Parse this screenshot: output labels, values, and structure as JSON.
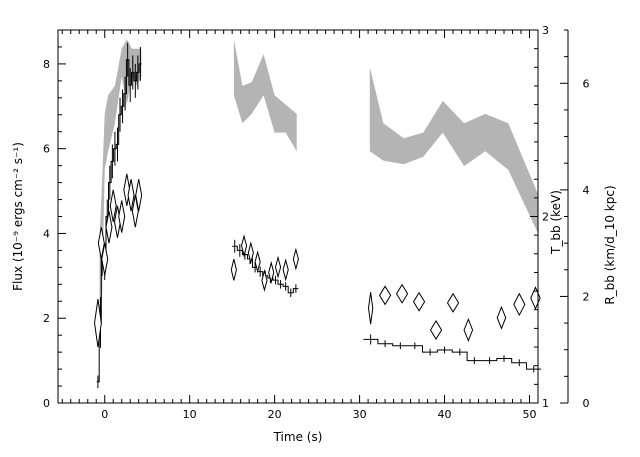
{
  "chart_data": {
    "type": "scatter",
    "xlabel": "Time (s)",
    "ylabel": "Flux (10⁻⁹ ergs cm⁻² s⁻¹)",
    "y2label_inner": "T_bb (keV)",
    "y3label_outer": "R_bb (km/d_10 kpc)",
    "xlim": [
      -5.5,
      51
    ],
    "ylim": [
      0,
      8.8
    ],
    "y2lim": [
      1,
      3
    ],
    "y3lim": [
      0,
      7
    ],
    "x_ticks": [
      0,
      10,
      20,
      30,
      40,
      50
    ],
    "y_ticks": [
      0,
      2,
      4,
      6,
      8
    ],
    "y2_ticks": [
      1,
      2,
      3
    ],
    "y3_ticks": [
      0,
      2,
      4,
      6
    ],
    "series": [
      {
        "role": "flux",
        "style": "crosses",
        "points": [
          {
            "x": -0.8,
            "y": 0.5,
            "ey": 0.15
          },
          {
            "x": -0.5,
            "y": 1.9,
            "ey": 0.6
          },
          {
            "x": -0.3,
            "y": 3.5,
            "ey": 0.5
          },
          {
            "x": 0.0,
            "y": 3.3,
            "ey": 0.4
          },
          {
            "x": 0.3,
            "y": 4.4,
            "ey": 0.4
          },
          {
            "x": 0.6,
            "y": 5.2,
            "ey": 0.4
          },
          {
            "x": 0.9,
            "y": 5.7,
            "ey": 0.4
          },
          {
            "x": 1.2,
            "y": 6.0,
            "ey": 0.4
          },
          {
            "x": 1.5,
            "y": 6.1,
            "ey": 0.4
          },
          {
            "x": 1.8,
            "y": 6.8,
            "ey": 0.4
          },
          {
            "x": 2.1,
            "y": 7.0,
            "ey": 0.4
          },
          {
            "x": 2.4,
            "y": 7.3,
            "ey": 0.4
          },
          {
            "x": 2.7,
            "y": 8.1,
            "ey": 0.4
          },
          {
            "x": 3.0,
            "y": 7.5,
            "ey": 0.4
          },
          {
            "x": 3.3,
            "y": 7.8,
            "ey": 0.4
          },
          {
            "x": 3.6,
            "y": 7.6,
            "ey": 0.4
          },
          {
            "x": 3.9,
            "y": 7.8,
            "ey": 0.4
          },
          {
            "x": 4.2,
            "y": 8.0,
            "ey": 0.4
          },
          {
            "x": 15.3,
            "y": 3.7,
            "ey": 0.15
          },
          {
            "x": 15.9,
            "y": 3.6,
            "ey": 0.15
          },
          {
            "x": 16.5,
            "y": 3.5,
            "ey": 0.12
          },
          {
            "x": 17.1,
            "y": 3.4,
            "ey": 0.12
          },
          {
            "x": 17.7,
            "y": 3.2,
            "ey": 0.12
          },
          {
            "x": 18.3,
            "y": 3.1,
            "ey": 0.12
          },
          {
            "x": 18.9,
            "y": 3.0,
            "ey": 0.12
          },
          {
            "x": 19.5,
            "y": 2.95,
            "ey": 0.12
          },
          {
            "x": 20.1,
            "y": 2.9,
            "ey": 0.1
          },
          {
            "x": 20.7,
            "y": 2.8,
            "ey": 0.1
          },
          {
            "x": 21.3,
            "y": 2.75,
            "ey": 0.1
          },
          {
            "x": 21.9,
            "y": 2.6,
            "ey": 0.1
          },
          {
            "x": 22.5,
            "y": 2.7,
            "ey": 0.1
          },
          {
            "x": 31.3,
            "y": 1.5,
            "ey": 0.12
          },
          {
            "x": 33.0,
            "y": 1.4,
            "ey": 0.08
          },
          {
            "x": 34.8,
            "y": 1.35,
            "ey": 0.08
          },
          {
            "x": 36.5,
            "y": 1.35,
            "ey": 0.08
          },
          {
            "x": 38.3,
            "y": 1.2,
            "ey": 0.08
          },
          {
            "x": 40.0,
            "y": 1.25,
            "ey": 0.08
          },
          {
            "x": 41.8,
            "y": 1.2,
            "ey": 0.08
          },
          {
            "x": 43.5,
            "y": 1.0,
            "ey": 0.08
          },
          {
            "x": 45.3,
            "y": 1.0,
            "ey": 0.08
          },
          {
            "x": 47.0,
            "y": 1.05,
            "ey": 0.08
          },
          {
            "x": 48.8,
            "y": 0.95,
            "ey": 0.08
          },
          {
            "x": 50.5,
            "y": 0.8,
            "ey": 0.08
          }
        ]
      },
      {
        "role": "T_bb",
        "style": "gray-band",
        "segments": [
          [
            {
              "x": -0.6,
              "lo": 1.4,
              "hi": 1.9
            },
            {
              "x": -0.3,
              "lo": 1.6,
              "hi": 2.2
            },
            {
              "x": 0.0,
              "lo": 2.25,
              "hi": 2.55
            },
            {
              "x": 0.4,
              "lo": 2.35,
              "hi": 2.65
            },
            {
              "x": 1.2,
              "lo": 2.5,
              "hi": 2.7
            },
            {
              "x": 2.0,
              "lo": 2.75,
              "hi": 2.9
            },
            {
              "x": 2.6,
              "lo": 2.6,
              "hi": 2.95
            },
            {
              "x": 3.2,
              "lo": 2.75,
              "hi": 2.9
            },
            {
              "x": 3.8,
              "lo": 2.7,
              "hi": 2.9
            },
            {
              "x": 4.3,
              "lo": 2.75,
              "hi": 2.9
            }
          ],
          [
            {
              "x": 15.2,
              "lo": 2.65,
              "hi": 2.95
            },
            {
              "x": 16.2,
              "lo": 2.5,
              "hi": 2.7
            },
            {
              "x": 17.3,
              "lo": 2.55,
              "hi": 2.72
            },
            {
              "x": 18.7,
              "lo": 2.65,
              "hi": 2.87
            },
            {
              "x": 20.0,
              "lo": 2.45,
              "hi": 2.65
            },
            {
              "x": 21.3,
              "lo": 2.45,
              "hi": 2.6
            },
            {
              "x": 22.6,
              "lo": 2.35,
              "hi": 2.55
            }
          ],
          [
            {
              "x": 31.2,
              "lo": 2.35,
              "hi": 2.8
            },
            {
              "x": 32.8,
              "lo": 2.3,
              "hi": 2.5
            },
            {
              "x": 35.2,
              "lo": 2.28,
              "hi": 2.42
            },
            {
              "x": 37.5,
              "lo": 2.32,
              "hi": 2.45
            },
            {
              "x": 39.8,
              "lo": 2.45,
              "hi": 2.62
            },
            {
              "x": 42.3,
              "lo": 2.27,
              "hi": 2.5
            },
            {
              "x": 44.8,
              "lo": 2.35,
              "hi": 2.55
            },
            {
              "x": 47.5,
              "lo": 2.25,
              "hi": 2.5
            },
            {
              "x": 51.0,
              "lo": 1.91,
              "hi": 2.12
            }
          ]
        ]
      },
      {
        "role": "R_bb",
        "style": "diamonds",
        "points": [
          {
            "x": -0.8,
            "y": 1.5,
            "dx": 0.4,
            "dy": 0.45
          },
          {
            "x": -0.4,
            "y": 3.0,
            "dx": 0.35,
            "dy": 0.3
          },
          {
            "x": 0.0,
            "y": 2.7,
            "dx": 0.35,
            "dy": 0.3
          },
          {
            "x": 0.5,
            "y": 3.3,
            "dx": 0.35,
            "dy": 0.3
          },
          {
            "x": 1.0,
            "y": 3.7,
            "dx": 0.35,
            "dy": 0.3
          },
          {
            "x": 1.5,
            "y": 3.4,
            "dx": 0.35,
            "dy": 0.3
          },
          {
            "x": 2.0,
            "y": 3.5,
            "dx": 0.35,
            "dy": 0.3
          },
          {
            "x": 2.6,
            "y": 4.0,
            "dx": 0.35,
            "dy": 0.3
          },
          {
            "x": 3.1,
            "y": 3.9,
            "dx": 0.35,
            "dy": 0.3
          },
          {
            "x": 3.6,
            "y": 3.6,
            "dx": 0.35,
            "dy": 0.3
          },
          {
            "x": 4.0,
            "y": 3.9,
            "dx": 0.35,
            "dy": 0.3
          },
          {
            "x": 15.2,
            "y": 2.5,
            "dx": 0.3,
            "dy": 0.2
          },
          {
            "x": 16.4,
            "y": 2.95,
            "dx": 0.3,
            "dy": 0.18
          },
          {
            "x": 17.2,
            "y": 2.82,
            "dx": 0.3,
            "dy": 0.18
          },
          {
            "x": 18.0,
            "y": 2.65,
            "dx": 0.3,
            "dy": 0.18
          },
          {
            "x": 18.8,
            "y": 2.3,
            "dx": 0.3,
            "dy": 0.18
          },
          {
            "x": 19.6,
            "y": 2.45,
            "dx": 0.3,
            "dy": 0.18
          },
          {
            "x": 20.4,
            "y": 2.55,
            "dx": 0.3,
            "dy": 0.18
          },
          {
            "x": 21.3,
            "y": 2.5,
            "dx": 0.3,
            "dy": 0.18
          },
          {
            "x": 22.5,
            "y": 2.7,
            "dx": 0.3,
            "dy": 0.18
          },
          {
            "x": 31.3,
            "y": 1.78,
            "dx": 0.25,
            "dy": 0.3
          },
          {
            "x": 33.0,
            "y": 2.02,
            "dx": 0.65,
            "dy": 0.17
          },
          {
            "x": 35.0,
            "y": 2.05,
            "dx": 0.65,
            "dy": 0.17
          },
          {
            "x": 37.0,
            "y": 1.9,
            "dx": 0.65,
            "dy": 0.17
          },
          {
            "x": 39.0,
            "y": 1.37,
            "dx": 0.65,
            "dy": 0.17
          },
          {
            "x": 41.0,
            "y": 1.88,
            "dx": 0.65,
            "dy": 0.17
          },
          {
            "x": 42.8,
            "y": 1.37,
            "dx": 0.5,
            "dy": 0.2
          },
          {
            "x": 46.7,
            "y": 1.6,
            "dx": 0.5,
            "dy": 0.2
          },
          {
            "x": 48.8,
            "y": 1.85,
            "dx": 0.65,
            "dy": 0.2
          },
          {
            "x": 50.7,
            "y": 1.97,
            "dx": 0.55,
            "dy": 0.2
          }
        ]
      }
    ],
    "grid": false,
    "legend": "none"
  }
}
